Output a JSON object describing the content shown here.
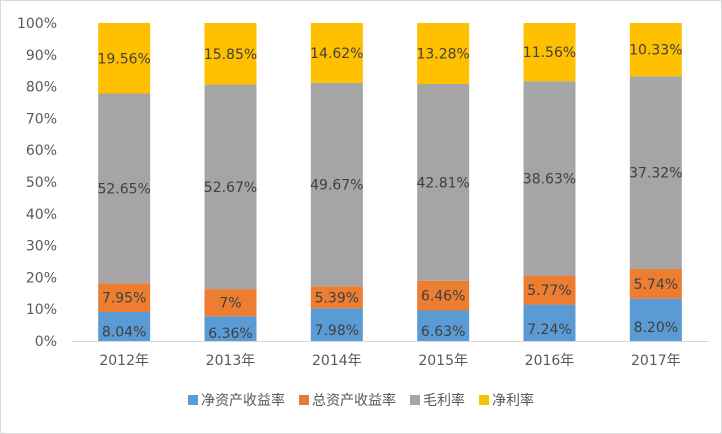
{
  "chart_data": {
    "type": "bar",
    "stacked": true,
    "percent_stacked": true,
    "categories": [
      "2012年",
      "2013年",
      "2014年",
      "2015年",
      "2016年",
      "2017年"
    ],
    "series": [
      {
        "name": "净资产收益率",
        "color": "#5B9BD5",
        "values": [
          8.04,
          6.36,
          7.98,
          6.63,
          7.24,
          8.2
        ],
        "labels": [
          "8.04%",
          "6.36%",
          "7.98%",
          "6.63%",
          "7.24%",
          "8.20%"
        ]
      },
      {
        "name": "总资产收益率",
        "color": "#ED7D31",
        "values": [
          7.95,
          7,
          5.39,
          6.46,
          5.77,
          5.74
        ],
        "labels": [
          "7.95%",
          "7%",
          "5.39%",
          "6.46%",
          "5.77%",
          "5.74%"
        ]
      },
      {
        "name": "毛利率",
        "color": "#A5A5A5",
        "values": [
          52.65,
          52.67,
          49.67,
          42.81,
          38.63,
          37.32
        ],
        "labels": [
          "52.65%",
          "52.67%",
          "49.67%",
          "42.81%",
          "38.63%",
          "37.32%"
        ]
      },
      {
        "name": "净利率",
        "color": "#FFC000",
        "values": [
          19.56,
          15.85,
          14.62,
          13.28,
          11.56,
          10.33
        ],
        "labels": [
          "19.56%",
          "15.85%",
          "14.62%",
          "13.28%",
          "11.56%",
          "10.33%"
        ]
      }
    ],
    "y_ticks": [
      "0%",
      "10%",
      "20%",
      "30%",
      "40%",
      "50%",
      "60%",
      "70%",
      "80%",
      "90%",
      "100%"
    ],
    "ylim": [
      0,
      100
    ],
    "grid": false,
    "legend_position": "bottom",
    "title": "",
    "xlabel": "",
    "ylabel": ""
  }
}
